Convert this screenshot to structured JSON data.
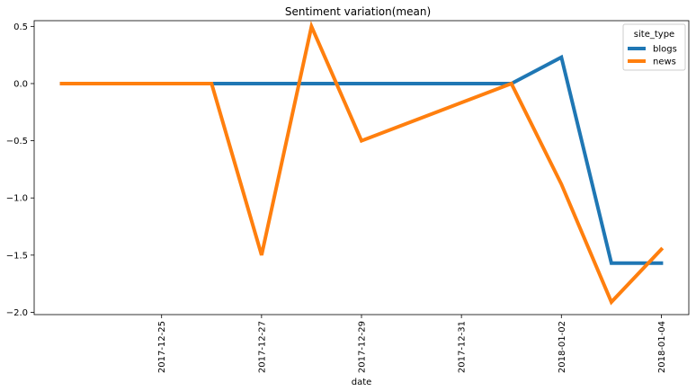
{
  "chart_data": {
    "type": "line",
    "title": "Sentiment variation(mean)",
    "xlabel": "date",
    "ylabel": "",
    "x": [
      "2017-12-23",
      "2017-12-24",
      "2017-12-25",
      "2017-12-26",
      "2017-12-27",
      "2017-12-28",
      "2017-12-29",
      "2017-12-30",
      "2017-12-31",
      "2018-01-01",
      "2018-01-02",
      "2018-01-03",
      "2018-01-04"
    ],
    "x_tick_labels": [
      "2017-12-25",
      "2017-12-27",
      "2017-12-29",
      "2017-12-31",
      "2018-01-02",
      "2018-01-04"
    ],
    "y_tick_labels": [
      "0.5",
      "0.0",
      "−0.5",
      "−1.0",
      "−1.5",
      "−2.0"
    ],
    "y_ticks": [
      0.5,
      0.0,
      -0.5,
      -1.0,
      -1.5,
      -2.0
    ],
    "ylim": [
      -2.02,
      0.55
    ],
    "xlim": [
      "2017-12-22",
      "2018-01-05"
    ],
    "grid": false,
    "legend": {
      "title": "site_type",
      "placement": "upper-right"
    },
    "series": [
      {
        "name": "blogs",
        "color": "#1f77b4",
        "points": [
          {
            "x": "2017-12-23",
            "y": 0.0
          },
          {
            "x": "2017-12-25",
            "y": 0.0
          },
          {
            "x": "2018-01-01",
            "y": 0.0
          },
          {
            "x": "2018-01-02",
            "y": 0.23
          },
          {
            "x": "2018-01-03",
            "y": -1.57
          },
          {
            "x": "2018-01-04",
            "y": -1.57
          }
        ]
      },
      {
        "name": "news",
        "color": "#ff7f0e",
        "points": [
          {
            "x": "2017-12-23",
            "y": 0.0
          },
          {
            "x": "2017-12-25",
            "y": 0.0
          },
          {
            "x": "2017-12-26",
            "y": 0.0
          },
          {
            "x": "2017-12-27",
            "y": -1.5
          },
          {
            "x": "2017-12-28",
            "y": 0.5
          },
          {
            "x": "2017-12-29",
            "y": -0.5
          },
          {
            "x": "2018-01-01",
            "y": 0.0
          },
          {
            "x": "2018-01-02",
            "y": -0.88
          },
          {
            "x": "2018-01-03",
            "y": -1.91
          },
          {
            "x": "2018-01-04",
            "y": -1.45
          }
        ]
      }
    ]
  }
}
